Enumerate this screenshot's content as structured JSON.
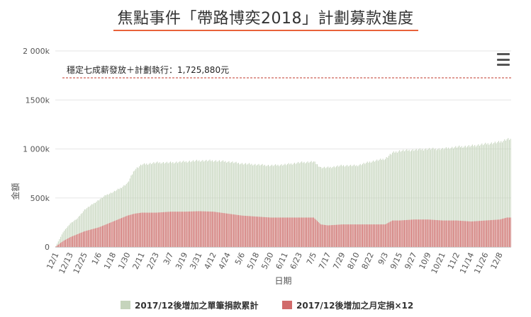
{
  "title": "焦點事件「帶路博奕2018」計劃募款進度",
  "icons": {
    "menu": "hamburger-menu-icon"
  },
  "chart_data": {
    "type": "bar",
    "stacked": false,
    "ylabel": "金額",
    "xlabel": "日期",
    "ylim": [
      0,
      2000000
    ],
    "yticks": [
      "0",
      "500k",
      "1 000k",
      "1500k",
      "2 000k"
    ],
    "ytick_values": [
      0,
      500000,
      1000000,
      1500000,
      2000000
    ],
    "xtick_labels": [
      "12/1",
      "12/13",
      "12/25",
      "1/6",
      "1/18",
      "1/30",
      "2/11",
      "2/23",
      "3/7",
      "3/19",
      "3/31",
      "4/12",
      "4/24",
      "5/6",
      "5/18",
      "5/30",
      "6/11",
      "6/23",
      "7/5",
      "7/17",
      "7/29",
      "8/10",
      "8/22",
      "9/3",
      "9/15",
      "9/27",
      "10/9",
      "10/21",
      "11/2",
      "11/14",
      "11/26",
      "12/8"
    ],
    "days_per_tick": 12,
    "grid": true,
    "legend_position": "bottom-center",
    "reference_line": {
      "value": 1725880,
      "label": "穩定七成薪發放＋計劃執行：1,725,880元",
      "color": "#c0392b"
    },
    "colors": {
      "single": "#c5d4bc",
      "monthly": "#d16a6a"
    },
    "series": [
      {
        "name": "2017/12後增加之單筆捐款累計",
        "color": "#c5d4bc",
        "x": [
          "12/1",
          "12/7",
          "12/13",
          "12/19",
          "12/25",
          "12/31",
          "1/6",
          "1/12",
          "1/18",
          "1/24",
          "1/30",
          "2/5",
          "2/11",
          "2/23",
          "3/7",
          "3/19",
          "3/31",
          "4/12",
          "4/24",
          "5/6",
          "5/18",
          "5/30",
          "6/11",
          "6/23",
          "7/5",
          "7/11",
          "7/17",
          "7/29",
          "8/10",
          "8/22",
          "9/3",
          "9/9",
          "9/15",
          "9/27",
          "10/9",
          "10/21",
          "11/2",
          "11/14",
          "11/26",
          "12/8",
          "12/14"
        ],
        "values": [
          10000,
          150000,
          240000,
          290000,
          380000,
          430000,
          480000,
          530000,
          560000,
          600000,
          650000,
          790000,
          840000,
          860000,
          860000,
          870000,
          880000,
          880000,
          870000,
          850000,
          840000,
          830000,
          840000,
          860000,
          870000,
          810000,
          810000,
          830000,
          830000,
          870000,
          900000,
          960000,
          980000,
          990000,
          1000000,
          1000000,
          1020000,
          1030000,
          1050000,
          1070000,
          1100000
        ]
      },
      {
        "name": "2017/12後增加之月定捐×12",
        "color": "#d16a6a",
        "x": [
          "12/1",
          "12/7",
          "12/13",
          "12/19",
          "12/25",
          "12/31",
          "1/6",
          "1/12",
          "1/18",
          "1/24",
          "1/30",
          "2/5",
          "2/11",
          "2/23",
          "3/7",
          "3/19",
          "3/31",
          "4/12",
          "4/24",
          "5/6",
          "5/18",
          "5/30",
          "6/11",
          "6/23",
          "7/5",
          "7/11",
          "7/17",
          "7/29",
          "8/10",
          "8/22",
          "9/3",
          "9/9",
          "9/15",
          "9/27",
          "10/9",
          "10/21",
          "11/2",
          "11/14",
          "11/26",
          "12/8",
          "12/14"
        ],
        "values": [
          5000,
          60000,
          100000,
          130000,
          160000,
          180000,
          200000,
          230000,
          260000,
          290000,
          320000,
          340000,
          350000,
          350000,
          360000,
          360000,
          365000,
          360000,
          340000,
          320000,
          310000,
          300000,
          300000,
          300000,
          300000,
          230000,
          220000,
          230000,
          230000,
          230000,
          230000,
          270000,
          270000,
          280000,
          280000,
          270000,
          270000,
          260000,
          270000,
          280000,
          300000
        ]
      }
    ]
  }
}
